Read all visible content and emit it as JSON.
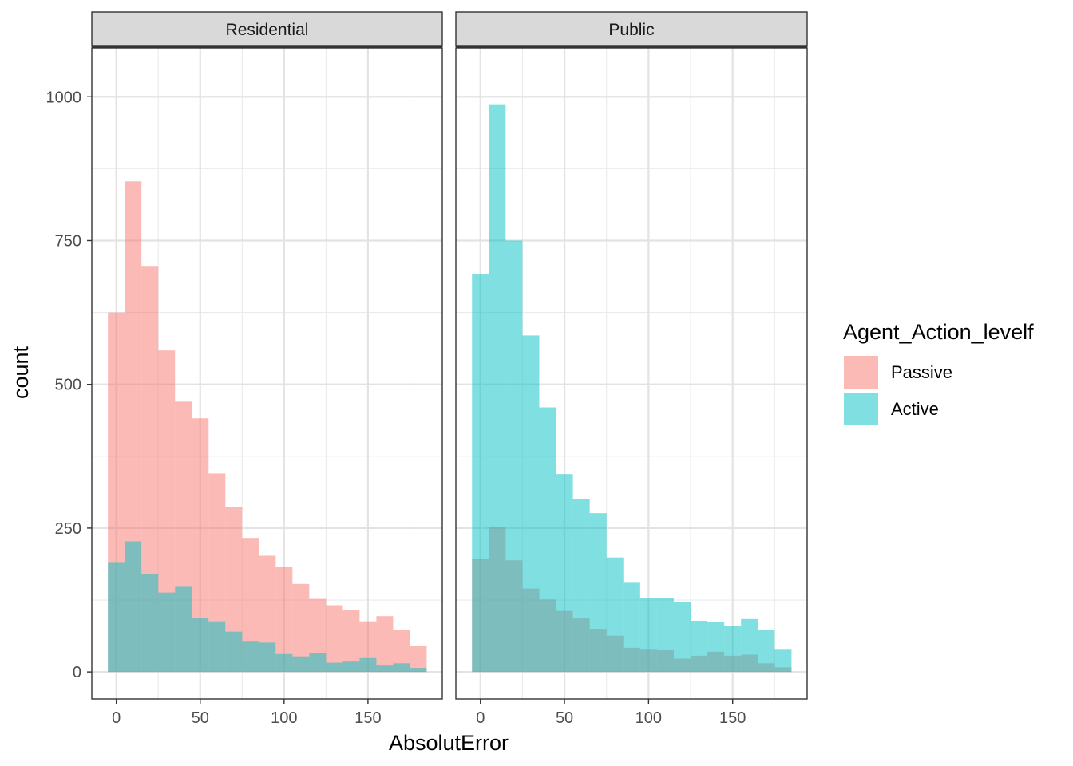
{
  "chart_data": {
    "type": "histogram",
    "xlabel": "AbsolutError",
    "ylabel": "count",
    "xlim": [
      -14.6,
      194.3
    ],
    "ylim": [
      -47,
      1085
    ],
    "x_ticks": [
      0,
      50,
      100,
      150
    ],
    "y_ticks": [
      0,
      250,
      500,
      750,
      1000
    ],
    "bin_width": 10,
    "bin_start": -5,
    "grid": true,
    "legend": {
      "title": "Agent_Action_levelf",
      "position": "right",
      "entries": [
        {
          "name": "Passive",
          "color": "#F8766D"
        },
        {
          "name": "Active",
          "color": "#00BFC4"
        }
      ]
    },
    "fill_opacity": 0.5,
    "panels": [
      {
        "strip": "Residential",
        "series": [
          {
            "name": "Passive",
            "values": [
              625,
              853,
              706,
              559,
              470,
              441,
              345,
              287,
              233,
              202,
              183,
              153,
              127,
              116,
              108,
              88,
              97,
              73,
              45
            ]
          },
          {
            "name": "Active",
            "values": [
              191,
              227,
              170,
              138,
              148,
              94,
              88,
              70,
              54,
              51,
              31,
              27,
              33,
              16,
              18,
              24,
              11,
              15,
              7
            ]
          }
        ]
      },
      {
        "strip": "Public",
        "series": [
          {
            "name": "Passive",
            "values": [
              197,
              252,
              194,
              145,
              126,
              106,
              93,
              75,
              63,
              42,
              40,
              38,
              23,
              28,
              35,
              28,
              30,
              15,
              8
            ]
          },
          {
            "name": "Active",
            "values": [
              692,
              987,
              750,
              585,
              460,
              344,
              301,
              276,
              199,
              155,
              129,
              129,
              121,
              89,
              87,
              80,
              92,
              73,
              40
            ]
          }
        ]
      }
    ]
  }
}
